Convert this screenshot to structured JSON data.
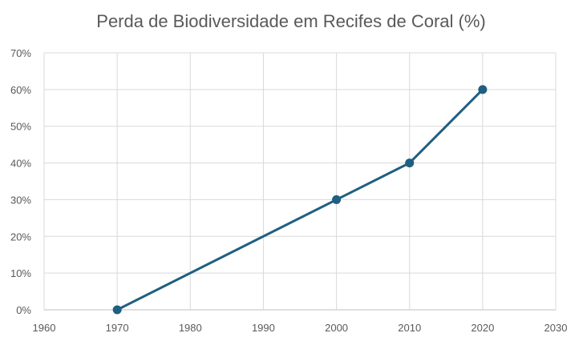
{
  "chart_data": {
    "type": "line",
    "title": "Perda de Biodiversidade em Recifes de Coral (%)",
    "xlabel": "",
    "ylabel": "",
    "xlim": [
      1960,
      2030
    ],
    "ylim": [
      0,
      70
    ],
    "x_ticks": [
      1960,
      1970,
      1980,
      1990,
      2000,
      2010,
      2020,
      2030
    ],
    "y_ticks": [
      "0%",
      "10%",
      "20%",
      "30%",
      "40%",
      "50%",
      "60%",
      "70%"
    ],
    "y_tick_values": [
      0,
      10,
      20,
      30,
      40,
      50,
      60,
      70
    ],
    "grid": true,
    "legend": "none",
    "series": [
      {
        "x": [
          1970,
          2000,
          2010,
          2020
        ],
        "y": [
          0,
          30,
          40,
          60
        ],
        "color": "#1f5f80"
      }
    ]
  }
}
